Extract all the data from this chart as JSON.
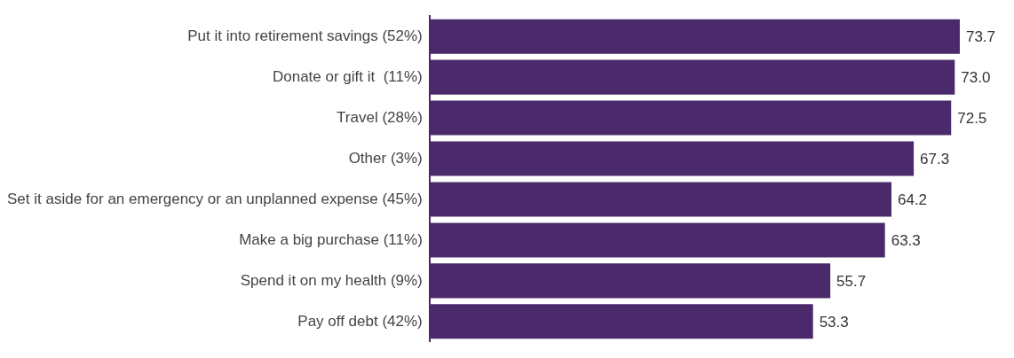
{
  "chart_data": {
    "type": "bar",
    "orientation": "horizontal",
    "categories": [
      "Put it into retirement savings (52%)",
      "Donate or gift it  (11%)",
      "Travel (28%)",
      "Other (3%)",
      "Set it aside for an emergency or an unplanned expense (45%)",
      "Make a big purchase (11%)",
      "Spend it on my health (9%)",
      "Pay off debt (42%)"
    ],
    "values": [
      73.7,
      73.0,
      72.5,
      67.3,
      64.2,
      63.3,
      55.7,
      53.3
    ],
    "value_labels": [
      "73.7",
      "73.0",
      "72.5",
      "67.3",
      "64.2",
      "63.3",
      "55.7",
      "53.3"
    ],
    "color": "#4b2a6b",
    "legend": false
  }
}
